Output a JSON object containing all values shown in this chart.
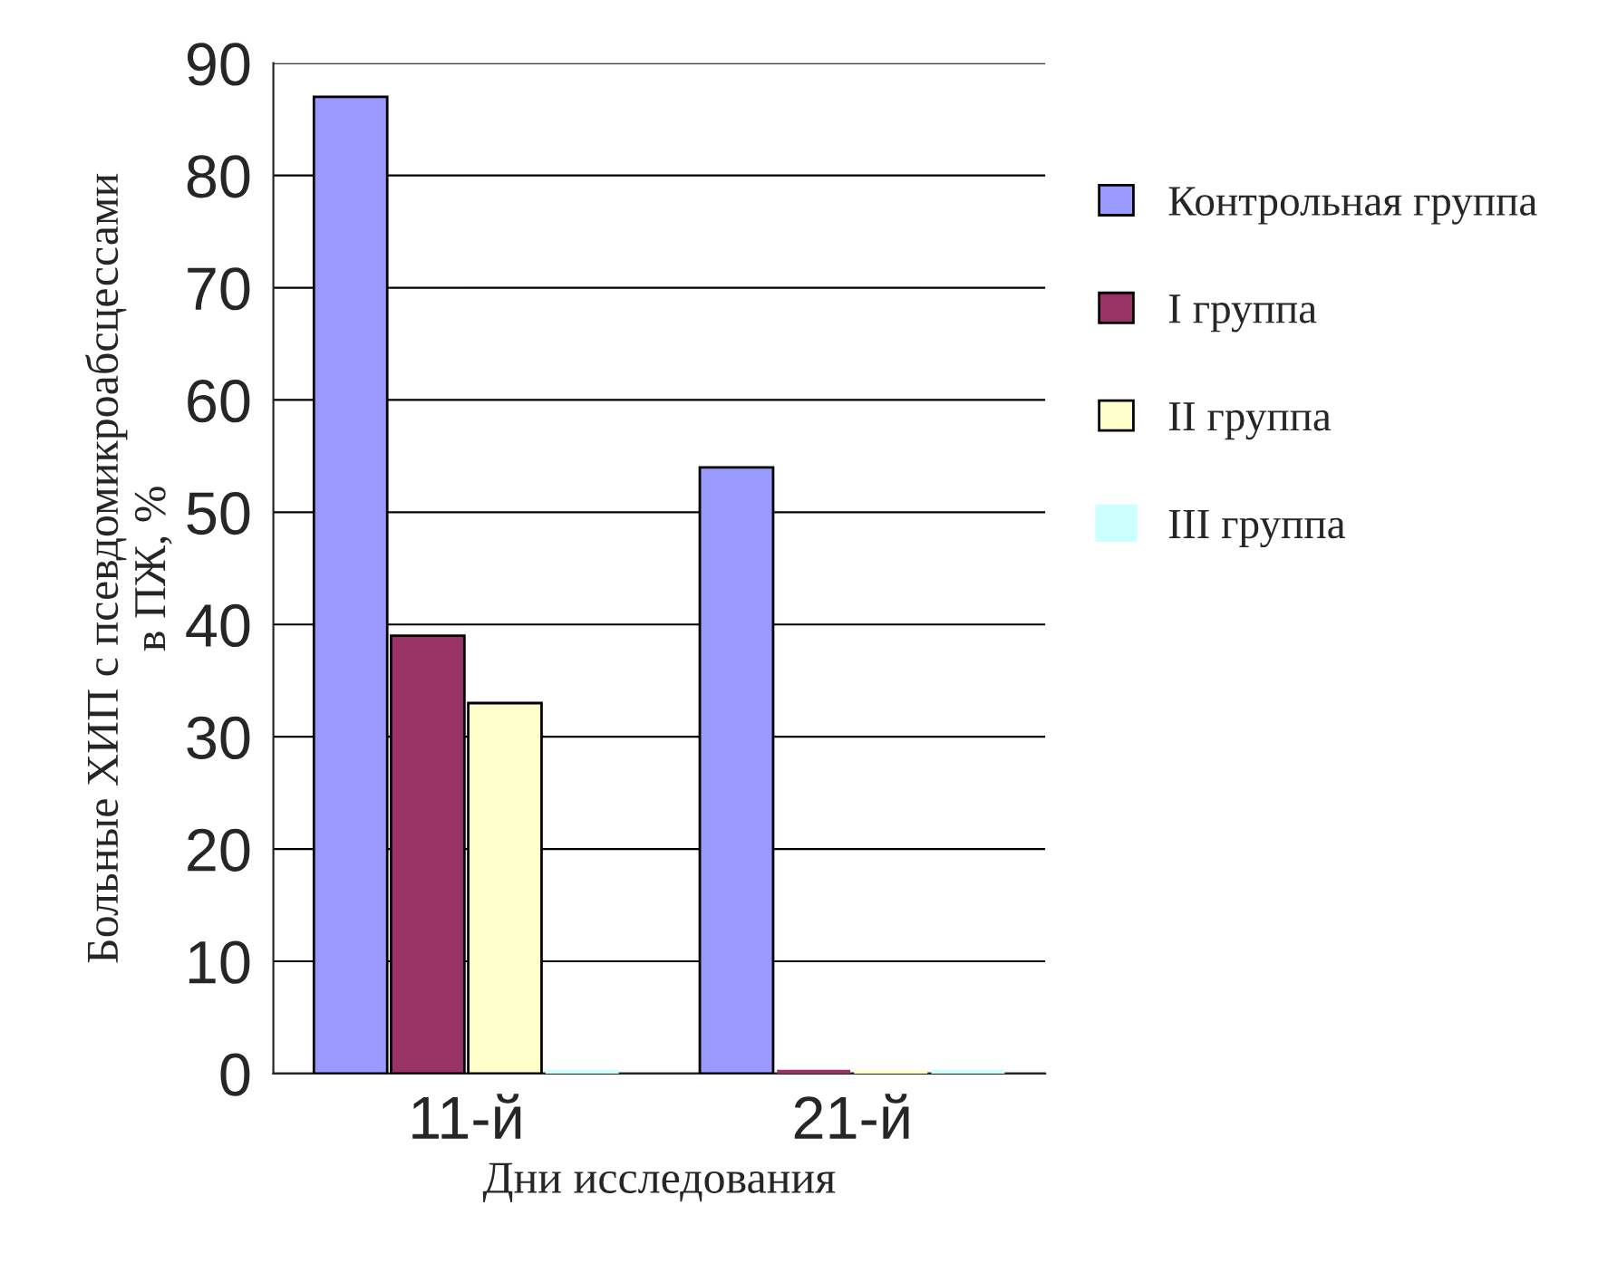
{
  "chart_data": {
    "type": "bar",
    "xlabel": "Дни исследования",
    "ylabel": "Больные ХИП с псевдомикроабсцессами\nв ПЖ, %",
    "categories": [
      "11-й",
      "21-й"
    ],
    "series": [
      {
        "name": "Контрольная группа",
        "color": "#9999ff",
        "values": [
          87,
          54
        ]
      },
      {
        "name": "I группа",
        "color": "#993366",
        "values": [
          39,
          0
        ]
      },
      {
        "name": "II группа",
        "color": "#ffffcc",
        "values": [
          33,
          0
        ]
      },
      {
        "name": "III группа",
        "color": "#ccffff",
        "values": [
          0,
          0
        ]
      }
    ],
    "ylim": [
      0,
      90
    ],
    "yticks": [
      0,
      10,
      20,
      30,
      40,
      50,
      60,
      70,
      80,
      90
    ],
    "grid": "y",
    "legend": "right"
  }
}
